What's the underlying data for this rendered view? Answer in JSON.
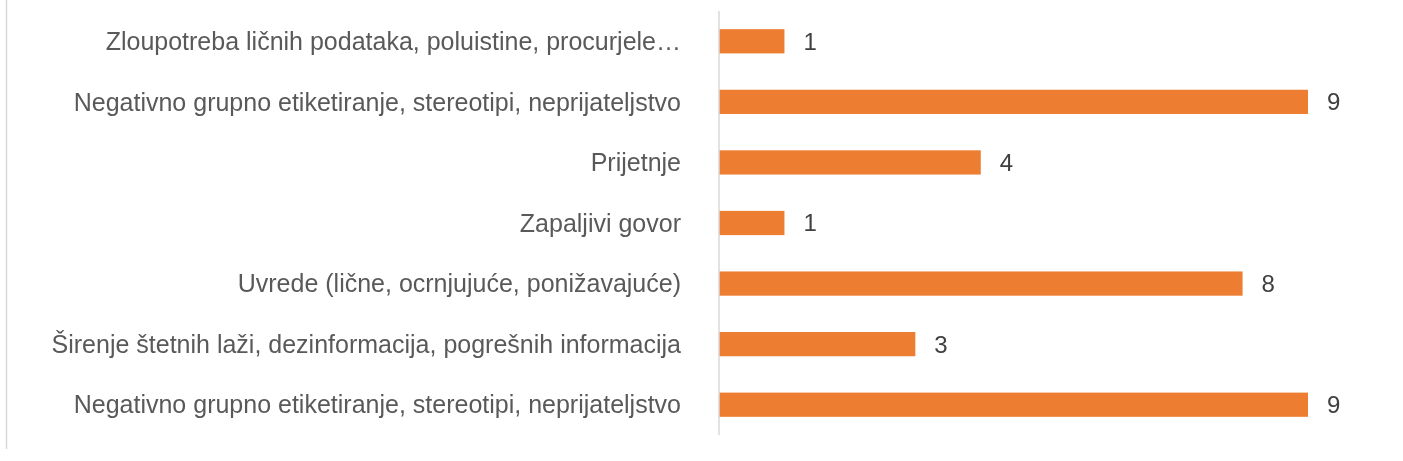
{
  "chart_data": {
    "type": "bar",
    "orientation": "horizontal",
    "categories": [
      "Zloupotreba ličnih podataka, poluistine, procurjele…",
      "Negativno grupno etiketiranje, stereotipi, neprijateljstvo",
      "Prijetnje",
      "Zapaljivi govor",
      "Uvrede (lične, ocrnjujuće, ponižavajuće)",
      "Širenje štetnih laži, dezinformacija, pogrešnih informacija",
      "Negativno grupno etiketiranje, stereotipi, neprijateljstvo"
    ],
    "values": [
      1,
      9,
      4,
      1,
      8,
      3,
      9
    ],
    "color": "#ed7d31",
    "data_labels": true,
    "tick_labels": "y"
  }
}
